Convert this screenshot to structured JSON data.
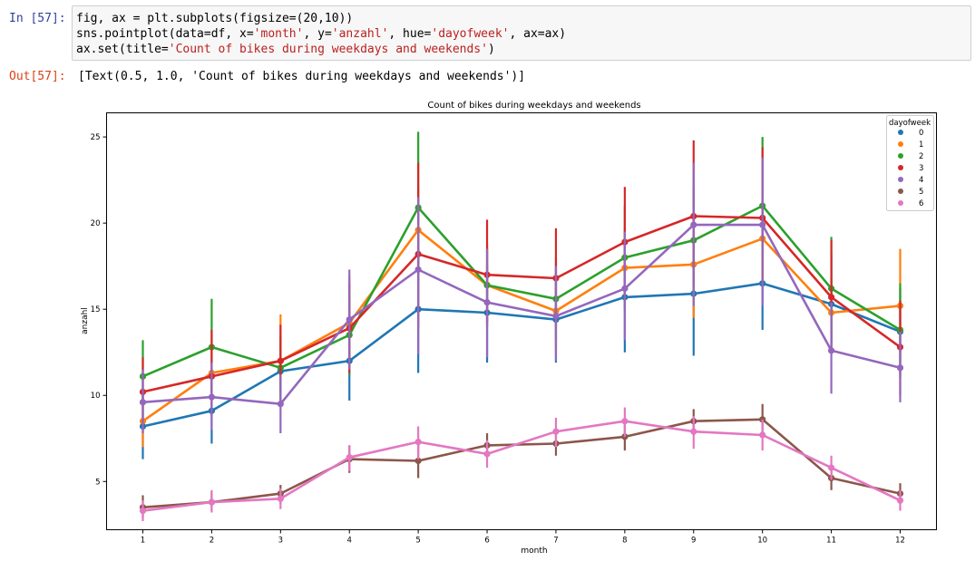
{
  "cell_in": {
    "prompt": "In [57]:",
    "lines": [
      [
        {
          "t": "fig, ax = plt.subplots(figsize=(20,10))",
          "s": ""
        }
      ],
      [
        {
          "t": "sns.pointplot(data=df, x=",
          "s": ""
        },
        {
          "t": "'month'",
          "s": "str"
        },
        {
          "t": ", y=",
          "s": ""
        },
        {
          "t": "'anzahl'",
          "s": "str"
        },
        {
          "t": ", hue=",
          "s": ""
        },
        {
          "t": "'dayofweek'",
          "s": "str"
        },
        {
          "t": ", ax=ax)",
          "s": ""
        }
      ],
      [
        {
          "t": "ax.set(title=",
          "s": ""
        },
        {
          "t": "'Count of bikes during weekdays and weekends'",
          "s": "str"
        },
        {
          "t": ")",
          "s": ""
        }
      ]
    ]
  },
  "cell_out": {
    "prompt": "Out[57]:",
    "text": "[Text(0.5, 1.0, 'Count of bikes during weekdays and weekends')]"
  },
  "chart_data": {
    "type": "line",
    "title": "Count of bikes during weekdays and weekends",
    "xlabel": "month",
    "ylabel": "anzahl",
    "x": [
      1,
      2,
      3,
      4,
      5,
      6,
      7,
      8,
      9,
      10,
      11,
      12
    ],
    "xticks": [
      "1",
      "2",
      "3",
      "4",
      "5",
      "6",
      "7",
      "8",
      "9",
      "10",
      "11",
      "12"
    ],
    "yticks": [
      5,
      10,
      15,
      20,
      25
    ],
    "ylim": [
      2.2,
      26.4
    ],
    "grid": false,
    "legend": {
      "title": "dayofweek",
      "placement": "top-right"
    },
    "series": [
      {
        "name": "0",
        "color": "#1f77b4",
        "values": [
          8.2,
          9.1,
          11.4,
          12.0,
          15.0,
          14.8,
          14.4,
          15.7,
          15.9,
          16.5,
          15.3,
          13.7
        ],
        "ci": [
          [
            6.3,
            10.2
          ],
          [
            7.2,
            11.0
          ],
          [
            9.5,
            13.0
          ],
          [
            9.7,
            14.3
          ],
          [
            11.3,
            18.7
          ],
          [
            11.9,
            17.6
          ],
          [
            11.9,
            17.0
          ],
          [
            12.5,
            18.9
          ],
          [
            12.3,
            19.5
          ],
          [
            13.8,
            19.2
          ],
          [
            12.5,
            18.2
          ],
          [
            11.2,
            16.2
          ]
        ]
      },
      {
        "name": "1",
        "color": "#ff7f0e",
        "values": [
          8.5,
          11.3,
          12.0,
          14.2,
          19.6,
          16.4,
          14.9,
          17.4,
          17.6,
          19.1,
          14.8,
          15.2
        ],
        "ci": [
          [
            7.0,
            10.1
          ],
          [
            9.9,
            12.7
          ],
          [
            10.0,
            14.7
          ],
          [
            11.5,
            16.9
          ],
          [
            17.0,
            22.1
          ],
          [
            14.0,
            18.8
          ],
          [
            12.6,
            17.2
          ],
          [
            15.0,
            19.8
          ],
          [
            14.5,
            20.4
          ],
          [
            16.6,
            21.5
          ],
          [
            12.8,
            16.8
          ],
          [
            12.5,
            18.5
          ]
        ]
      },
      {
        "name": "2",
        "color": "#2ca02c",
        "values": [
          11.1,
          12.8,
          11.6,
          13.5,
          20.9,
          16.4,
          15.6,
          18.0,
          19.0,
          21.0,
          16.2,
          13.8
        ],
        "ci": [
          [
            9.4,
            13.2
          ],
          [
            10.2,
            15.6
          ],
          [
            9.7,
            13.5
          ],
          [
            11.2,
            15.8
          ],
          [
            17.4,
            25.3
          ],
          [
            14.3,
            18.5
          ],
          [
            13.2,
            18.0
          ],
          [
            15.0,
            21.0
          ],
          [
            16.0,
            22.0
          ],
          [
            17.9,
            25.0
          ],
          [
            13.0,
            19.2
          ],
          [
            11.0,
            16.5
          ]
        ]
      },
      {
        "name": "3",
        "color": "#d62728",
        "values": [
          10.2,
          11.1,
          12.0,
          13.9,
          18.2,
          17.0,
          16.8,
          18.9,
          20.4,
          20.3,
          15.7,
          12.8
        ],
        "ci": [
          [
            8.5,
            12.2
          ],
          [
            8.8,
            13.8
          ],
          [
            10.2,
            14.1
          ],
          [
            11.3,
            16.5
          ],
          [
            13.9,
            23.5
          ],
          [
            14.0,
            20.2
          ],
          [
            14.0,
            19.7
          ],
          [
            15.7,
            22.1
          ],
          [
            16.4,
            24.8
          ],
          [
            16.6,
            24.4
          ],
          [
            12.5,
            19.0
          ],
          [
            10.0,
            15.5
          ]
        ]
      },
      {
        "name": "4",
        "color": "#9467bd",
        "values": [
          9.6,
          9.9,
          9.5,
          14.4,
          17.3,
          15.4,
          14.6,
          16.2,
          19.9,
          19.9,
          12.6,
          11.6
        ],
        "ci": [
          [
            7.8,
            11.5
          ],
          [
            8.0,
            11.9
          ],
          [
            7.8,
            11.2
          ],
          [
            11.5,
            17.3
          ],
          [
            12.4,
            21.5
          ],
          [
            12.2,
            18.5
          ],
          [
            12.0,
            17.5
          ],
          [
            13.2,
            19.5
          ],
          [
            15.2,
            23.5
          ],
          [
            15.2,
            23.8
          ],
          [
            10.1,
            15.4
          ],
          [
            9.6,
            13.7
          ]
        ]
      },
      {
        "name": "5",
        "color": "#8c564b",
        "values": [
          3.5,
          3.8,
          4.3,
          6.3,
          6.2,
          7.1,
          7.2,
          7.6,
          8.5,
          8.6,
          5.2,
          4.3
        ],
        "ci": [
          [
            2.9,
            4.2
          ],
          [
            3.3,
            4.4
          ],
          [
            3.7,
            4.8
          ],
          [
            5.5,
            7.1
          ],
          [
            5.2,
            7.3
          ],
          [
            6.4,
            7.8
          ],
          [
            6.5,
            7.9
          ],
          [
            6.8,
            8.4
          ],
          [
            7.7,
            9.2
          ],
          [
            7.6,
            9.5
          ],
          [
            4.5,
            5.9
          ],
          [
            3.7,
            4.9
          ]
        ]
      },
      {
        "name": "6",
        "color": "#e377c2",
        "values": [
          3.3,
          3.8,
          4.0,
          6.4,
          7.3,
          6.6,
          7.9,
          8.5,
          7.9,
          7.7,
          5.8,
          3.9
        ],
        "ci": [
          [
            2.7,
            3.9
          ],
          [
            3.2,
            4.5
          ],
          [
            3.4,
            4.6
          ],
          [
            5.6,
            7.1
          ],
          [
            6.3,
            8.2
          ],
          [
            5.8,
            7.4
          ],
          [
            7.0,
            8.7
          ],
          [
            7.6,
            9.3
          ],
          [
            6.9,
            8.8
          ],
          [
            6.8,
            8.6
          ],
          [
            5.1,
            6.5
          ],
          [
            3.3,
            4.5
          ]
        ]
      }
    ]
  }
}
